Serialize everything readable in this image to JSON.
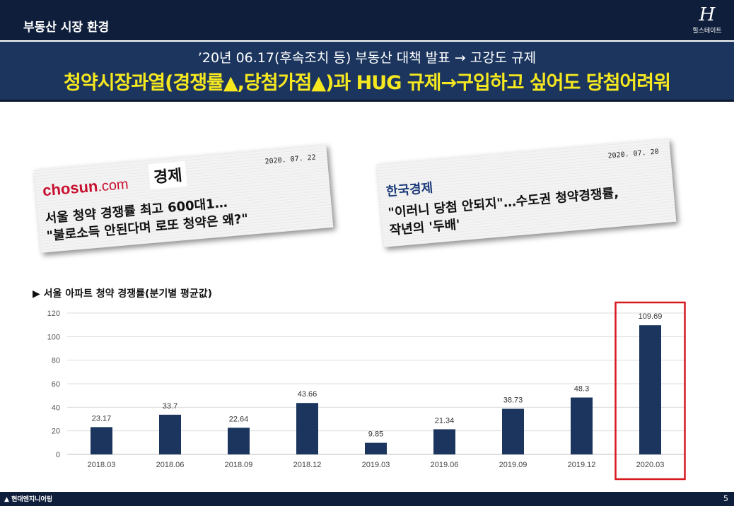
{
  "header": {
    "section_title": "부동산 시장 환경",
    "logo_mark": "H",
    "logo_text": "힐스테이트"
  },
  "banner": {
    "line1": "’20년 06.17(후속조치 등) 부동산 대책 발표 → 고강도 규제",
    "line2": "청약시장과열(경쟁률▲,당첨가점▲)과 HUG 규제→구입하고 싶어도 당첨어려워"
  },
  "clippings": [
    {
      "brand_main": "chosun",
      "brand_suffix": ".com",
      "brand_section": "경제",
      "date": "2020. 07. 22",
      "headline_line1": "서울 청약 경쟁률 최고 600대1…",
      "headline_line2": "\"불로소득 안된다며 로또 청약은 왜?\""
    },
    {
      "brand_main": "한국경제",
      "date": "2020. 07. 20",
      "headline_line1": "\"이러니 당첨 안되지\"…수도권 청약경쟁률,",
      "headline_line2": "작년의 '두배'"
    }
  ],
  "chart_title": "▶ 서울 아파트 청약 경쟁률(분기별 평균값)",
  "chart_data": {
    "type": "bar",
    "title": "",
    "categories": [
      "2018.03",
      "2018.06",
      "2018.09",
      "2018.12",
      "2019.03",
      "2019.06",
      "2019.09",
      "2019.12",
      "2020.03"
    ],
    "values": [
      23.17,
      33.7,
      22.64,
      43.66,
      9.85,
      21.34,
      38.73,
      48.3,
      109.69
    ],
    "value_labels": [
      "23.17",
      "33.7",
      "22.64",
      "43.66",
      "9.85",
      "21.34",
      "38.73",
      "48.3",
      "109.69"
    ],
    "y_ticks": [
      0,
      20,
      40,
      60,
      80,
      100,
      120
    ],
    "ylim": [
      0,
      120
    ],
    "grid": true,
    "bar_color": "#1b355e",
    "highlight_index": 8,
    "highlight_color": "#d71920",
    "legend": "none"
  },
  "footer": {
    "brand": "현대엔지니어링",
    "page_number": "5"
  }
}
